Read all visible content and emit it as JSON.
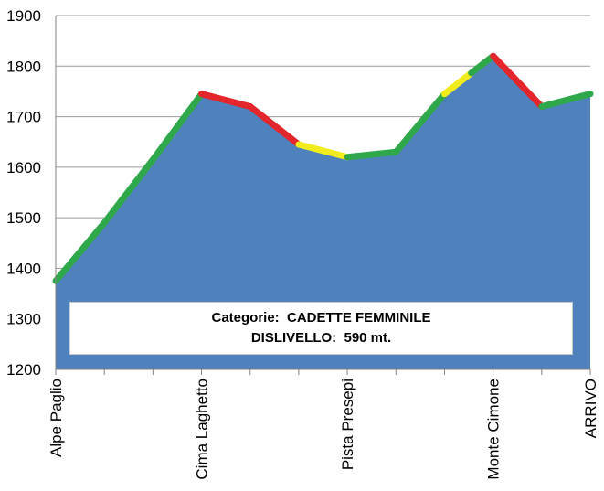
{
  "chart_data": {
    "type": "area",
    "title": "",
    "xlabel": "",
    "ylabel": "",
    "ylim": [
      1200,
      1900
    ],
    "yticks": [
      1200,
      1300,
      1400,
      1500,
      1600,
      1700,
      1800,
      1900
    ],
    "grid": true,
    "legend": "none",
    "points": [
      {
        "label": "Alpe Paglio",
        "value": 1375
      },
      {
        "label": "",
        "value": 1490
      },
      {
        "label": "",
        "value": 1615
      },
      {
        "label": "Cima Laghetto",
        "value": 1745
      },
      {
        "label": "",
        "value": 1720
      },
      {
        "label": "",
        "value": 1645
      },
      {
        "label": "Pista Presepi",
        "value": 1620
      },
      {
        "label": "",
        "value": 1630
      },
      {
        "label": "",
        "value": 1745
      },
      {
        "label": "Monte Cimone",
        "value": 1820
      },
      {
        "label": "",
        "value": 1720
      },
      {
        "label": "ARRIVO",
        "value": 1745
      }
    ],
    "segments": [
      {
        "from": 0,
        "to": 1,
        "color": "green"
      },
      {
        "from": 1,
        "to": 2,
        "color": "green"
      },
      {
        "from": 2,
        "to": 3,
        "color": "green"
      },
      {
        "from": 3,
        "to": 4,
        "color": "red"
      },
      {
        "from": 4,
        "to": 5,
        "color": "red"
      },
      {
        "from": 5,
        "to": 6,
        "color": "yellow"
      },
      {
        "from": 6,
        "to": 7,
        "color": "green"
      },
      {
        "from": 7,
        "to": 8,
        "color": "green"
      },
      {
        "from": 8,
        "to": 9,
        "color": "yellow-green"
      },
      {
        "from": 9,
        "to": 10,
        "color": "red"
      },
      {
        "from": 10,
        "to": 11,
        "color": "green"
      }
    ],
    "colors": {
      "area": "#4f81bd",
      "green": "#2ea84a",
      "red": "#e3262b",
      "yellow": "#f2ec1d",
      "grid": "#9a9a9a"
    },
    "annotation": {
      "line1": "Categorie:  CADETTE FEMMINILE",
      "line2": "DISLIVELLO:  590 mt."
    }
  }
}
